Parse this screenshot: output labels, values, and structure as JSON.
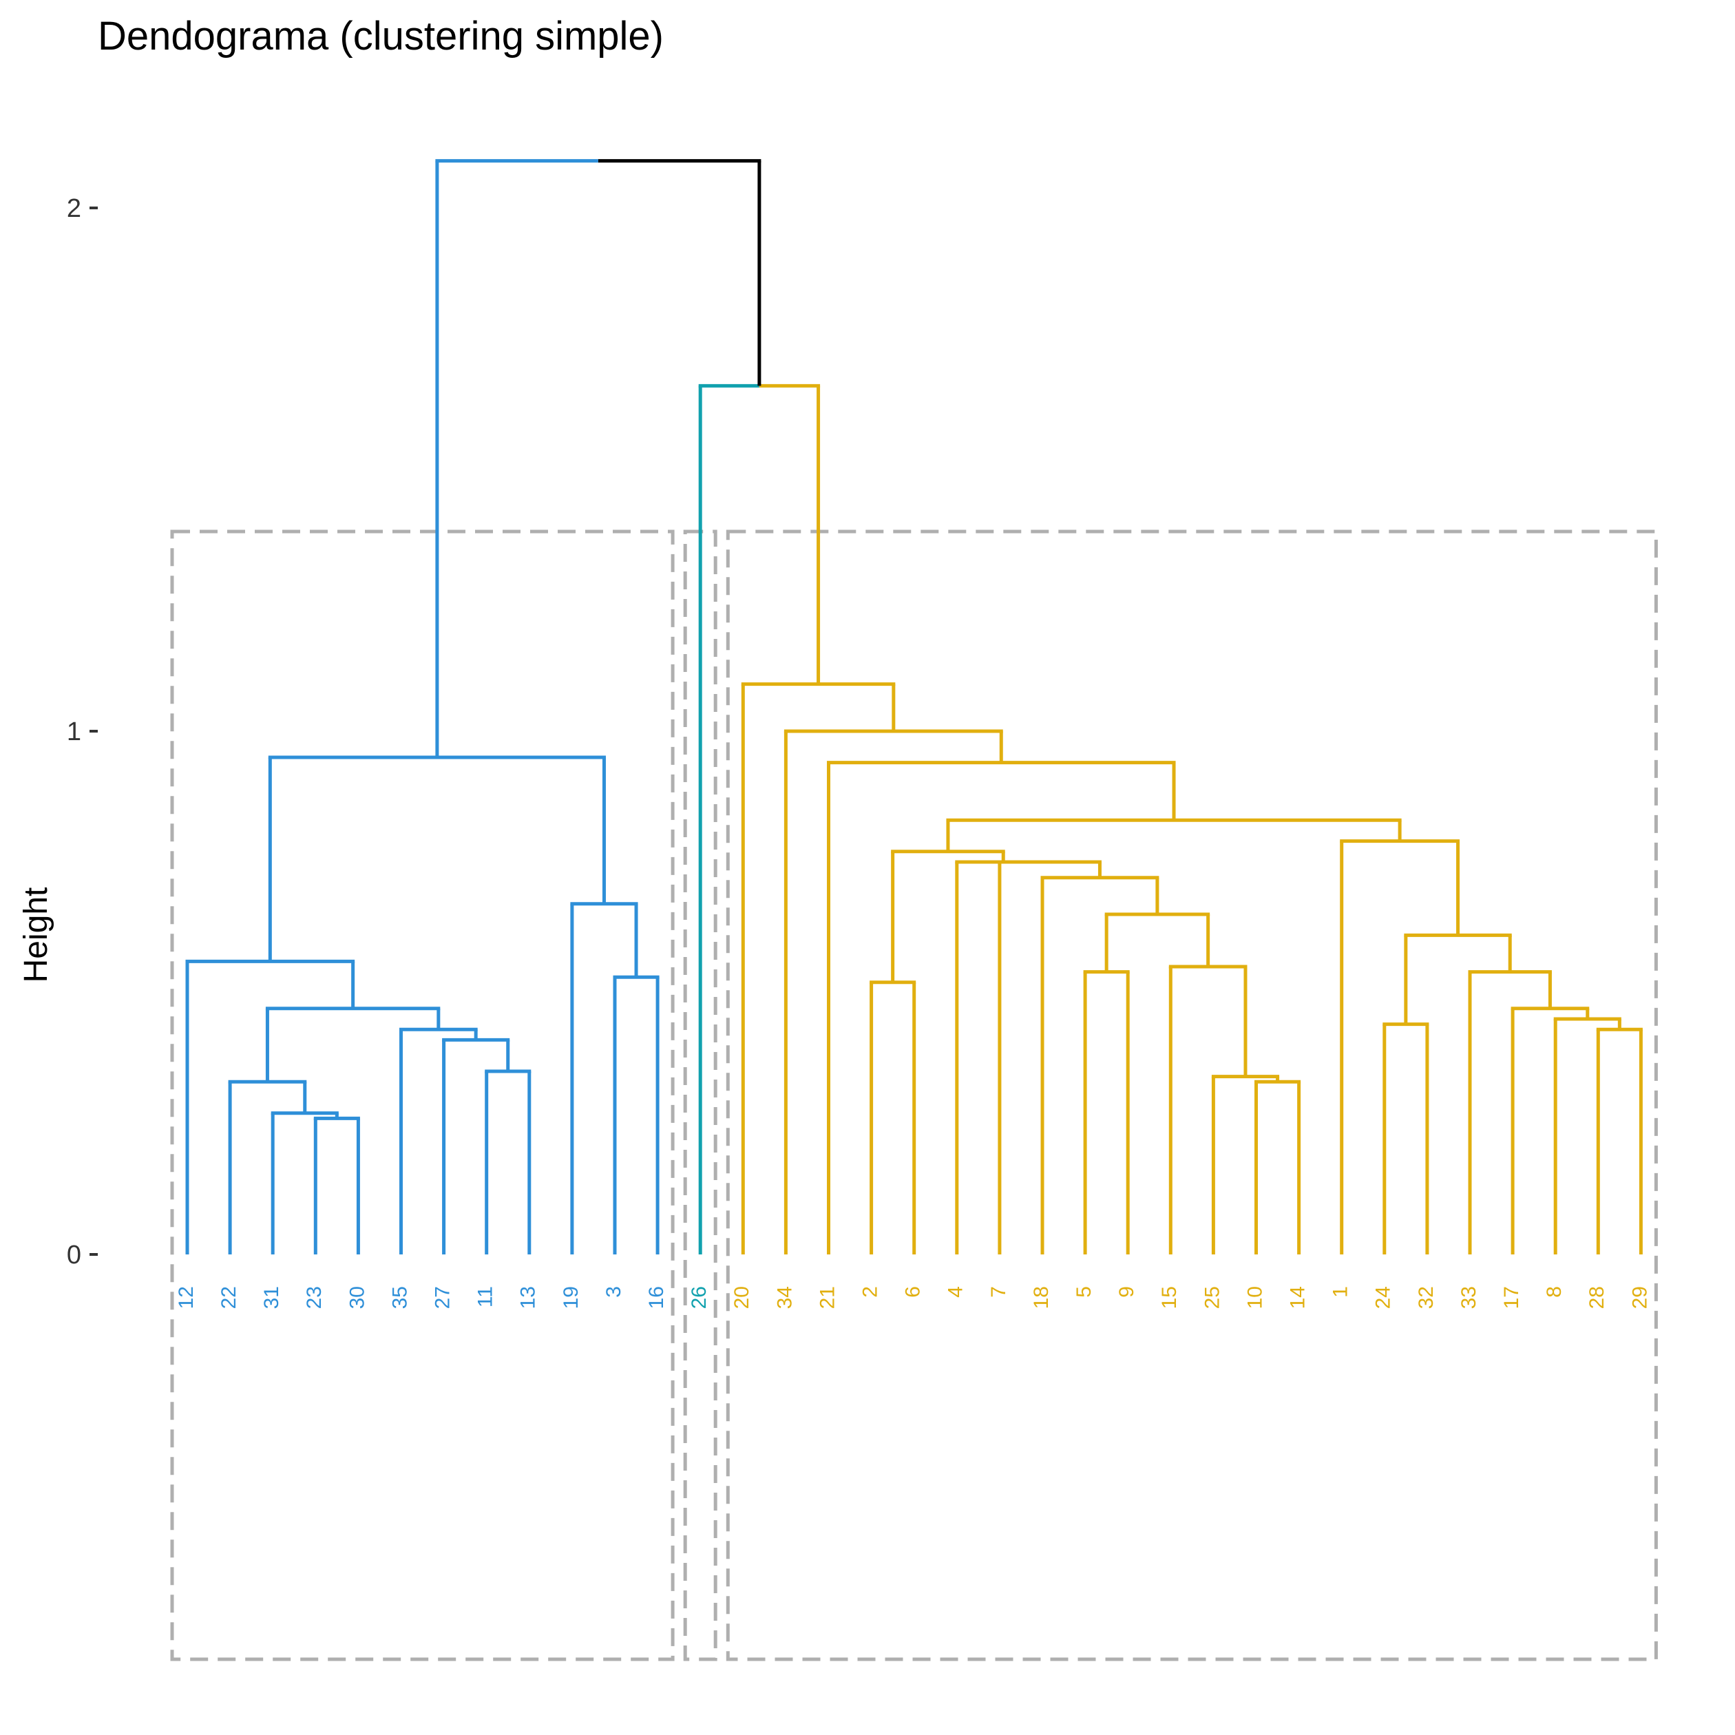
{
  "chart_data": {
    "type": "dendrogram",
    "title": "Dendograma (clustering simple)",
    "ylabel": "Height",
    "xlabel": "",
    "ylim": [
      0,
      2.2
    ],
    "y_ticks": [
      0,
      1,
      2
    ],
    "grid": false,
    "colors": {
      "cluster_1": "#2E8FD8",
      "cluster_2": "#11A1AE",
      "cluster_3": "#E1AF0F",
      "root": "#000000",
      "rect": "#AFAFAF"
    },
    "leaves": [
      "12",
      "22",
      "31",
      "23",
      "30",
      "35",
      "27",
      "11",
      "13",
      "19",
      "3",
      "16",
      "26",
      "20",
      "34",
      "21",
      "2",
      "6",
      "4",
      "7",
      "18",
      "5",
      "9",
      "15",
      "25",
      "10",
      "14",
      "1",
      "24",
      "32",
      "33",
      "17",
      "8",
      "28",
      "29"
    ],
    "leaf_clusters": [
      1,
      1,
      1,
      1,
      1,
      1,
      1,
      1,
      1,
      1,
      1,
      1,
      2,
      3,
      3,
      3,
      3,
      3,
      3,
      3,
      3,
      3,
      3,
      3,
      3,
      3,
      3,
      3,
      3,
      3,
      3,
      3,
      3,
      3,
      3
    ],
    "merges": [
      {
        "a": "23",
        "b": "30",
        "height": 0.26,
        "cluster": 1
      },
      {
        "a": "31",
        "b": "(23,30)",
        "height": 0.27,
        "cluster": 1
      },
      {
        "a": "22",
        "b": "(31,23,30)",
        "height": 0.33,
        "cluster": 1
      },
      {
        "a": "11",
        "b": "13",
        "height": 0.35,
        "cluster": 1
      },
      {
        "a": "27",
        "b": "(11,13)",
        "height": 0.41,
        "cluster": 1
      },
      {
        "a": "35",
        "b": "(27,11,13)",
        "height": 0.43,
        "cluster": 1
      },
      {
        "a": "(22,31,23,30)",
        "b": "(35,27,11,13)",
        "height": 0.47,
        "cluster": 1
      },
      {
        "a": "12",
        "b": "(22,...,13)",
        "height": 0.56,
        "cluster": 1
      },
      {
        "a": "3",
        "b": "16",
        "height": 0.53,
        "cluster": 1
      },
      {
        "a": "19",
        "b": "(3,16)",
        "height": 0.67,
        "cluster": 1
      },
      {
        "a": "(12,...,13)",
        "b": "(19,3,16)",
        "height": 0.95,
        "cluster": 1
      },
      {
        "a": "10",
        "b": "14",
        "height": 0.33,
        "cluster": 3
      },
      {
        "a": "25",
        "b": "(10,14)",
        "height": 0.34,
        "cluster": 3
      },
      {
        "a": "15",
        "b": "(25,10,14)",
        "height": 0.55,
        "cluster": 3
      },
      {
        "a": "5",
        "b": "9",
        "height": 0.54,
        "cluster": 3
      },
      {
        "a": "(5,9)",
        "b": "(15,25,10,14)",
        "height": 0.65,
        "cluster": 3
      },
      {
        "a": "18",
        "b": "(5,...,14)",
        "height": 0.72,
        "cluster": 3
      },
      {
        "a": "7",
        "b": "(18,...,14)",
        "height": 0.75,
        "cluster": 3
      },
      {
        "a": "4",
        "b": "(7,...,14)",
        "height": 0.75,
        "cluster": 3
      },
      {
        "a": "2",
        "b": "6",
        "height": 0.52,
        "cluster": 3
      },
      {
        "a": "(2,6)",
        "b": "(4,...,14)",
        "height": 0.77,
        "cluster": 3
      },
      {
        "a": "28",
        "b": "29",
        "height": 0.43,
        "cluster": 3
      },
      {
        "a": "8",
        "b": "(28,29)",
        "height": 0.45,
        "cluster": 3
      },
      {
        "a": "17",
        "b": "(8,28,29)",
        "height": 0.47,
        "cluster": 3
      },
      {
        "a": "33",
        "b": "(17,8,28,29)",
        "height": 0.54,
        "cluster": 3
      },
      {
        "a": "24",
        "b": "32",
        "height": 0.44,
        "cluster": 3
      },
      {
        "a": "(24,32)",
        "b": "(33,...,29)",
        "height": 0.61,
        "cluster": 3
      },
      {
        "a": "1",
        "b": "(24,...,29)",
        "height": 0.79,
        "cluster": 3
      },
      {
        "a": "(2,...,14)",
        "b": "(1,...,29)",
        "height": 0.83,
        "cluster": 3
      },
      {
        "a": "21",
        "b": "(2,...,29)",
        "height": 0.94,
        "cluster": 3
      },
      {
        "a": "34",
        "b": "(21,...,29)",
        "height": 1.0,
        "cluster": 3
      },
      {
        "a": "20",
        "b": "(34,...,29)",
        "height": 1.09,
        "cluster": 3
      },
      {
        "a": "26",
        "b": "(20,...,29)",
        "height": 1.66,
        "cluster": 0
      },
      {
        "a": "(12,...,16)",
        "b": "(26,...,29)",
        "height": 2.09,
        "cluster": 0
      }
    ],
    "cluster_rects": [
      {
        "cluster": 1,
        "first_leaf": "12",
        "last_leaf": "16"
      },
      {
        "cluster": 2,
        "first_leaf": "26",
        "last_leaf": "26"
      },
      {
        "cluster": 3,
        "first_leaf": "20",
        "last_leaf": "29"
      }
    ]
  }
}
